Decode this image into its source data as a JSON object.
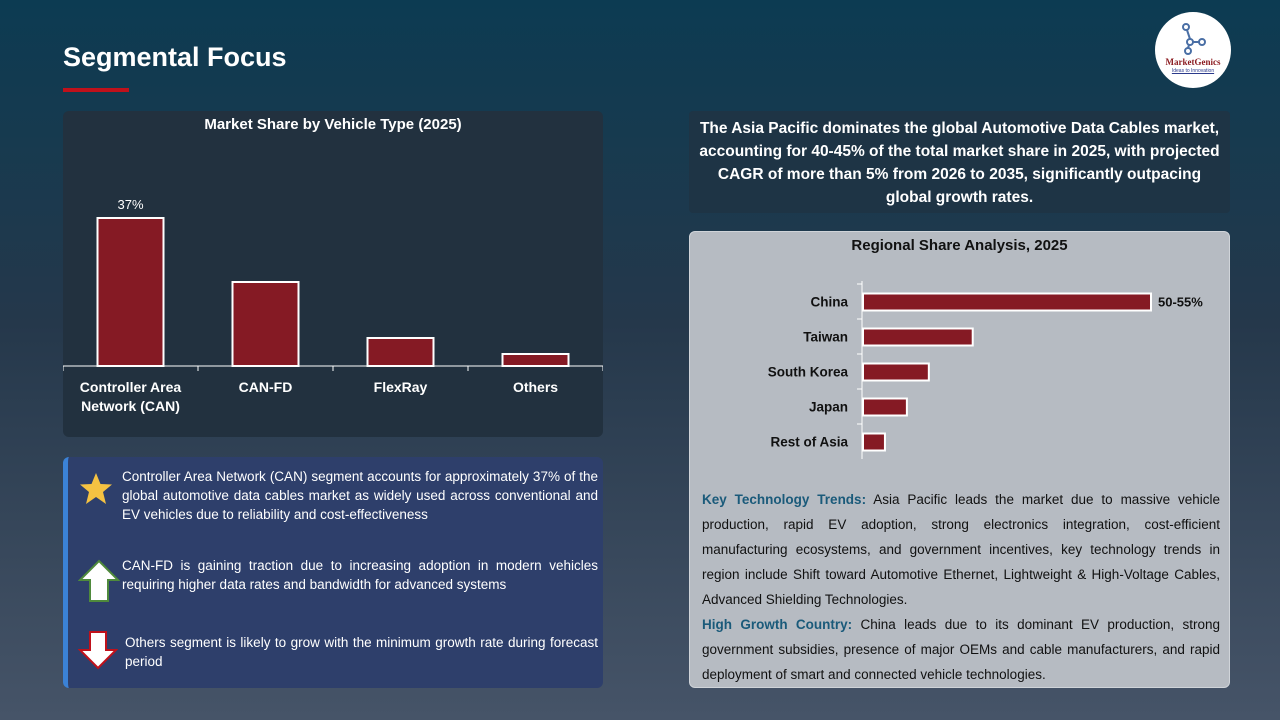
{
  "header": {
    "title": "Segmental Focus",
    "logo": {
      "name": "MarketGenics",
      "tagline": "Ideas to Innovation"
    }
  },
  "colors": {
    "bar": "#851a24",
    "accent": "#c0111b",
    "panel_border": "#3b82d6"
  },
  "chart_data": [
    {
      "type": "bar",
      "title": "Market Share by Vehicle Type (2025)",
      "categories": [
        "Controller Area Network (CAN)",
        "CAN-FD",
        "FlexRay",
        "Others"
      ],
      "category_lines": [
        [
          "Controller Area",
          "Network (CAN)"
        ],
        [
          "CAN-FD"
        ],
        [
          "FlexRay"
        ],
        [
          "Others"
        ]
      ],
      "values": [
        37,
        21,
        7,
        3
      ],
      "data_labels": [
        "37%",
        "",
        "",
        ""
      ],
      "unit": "%",
      "ylim": [
        0,
        45
      ],
      "grid": false
    },
    {
      "type": "bar",
      "orientation": "horizontal",
      "title": "Regional Share Analysis, 2025",
      "categories": [
        "China",
        "Taiwan",
        "South Korea",
        "Japan",
        "Rest of Asia"
      ],
      "values": [
        52.5,
        20,
        12,
        8,
        4
      ],
      "data_labels": [
        "50-55%",
        "",
        "",
        "",
        ""
      ],
      "unit": "%",
      "xlim": [
        0,
        60
      ],
      "grid": false
    }
  ],
  "bullets": [
    {
      "icon": "star-icon",
      "text": "Controller Area Network (CAN) segment accounts for approximately 37% of the global automotive data cables  market as widely used across conventional and EV vehicles due to reliability and cost-effectiveness"
    },
    {
      "icon": "arrow-up-icon",
      "text": "CAN-FD is gaining traction due to increasing adoption in modern vehicles requiring higher data rates and bandwidth for advanced systems"
    },
    {
      "icon": "arrow-down-icon",
      "text": "Others segment is likely to grow with the minimum growth rate during forecast period"
    }
  ],
  "highlight": "The Asia Pacific dominates the global Automotive Data Cables market, accounting for 40-45% of the total market share in 2025, with projected CAGR of more than 5% from 2026 to 2035, significantly outpacing global growth rates.",
  "insights": [
    {
      "label": "Key Technology Trends:",
      "text": " Asia Pacific leads the market due to massive vehicle production, rapid EV adoption, strong electronics integration, cost-efficient manufacturing ecosystems, and government incentives, key technology trends in region include Shift toward Automotive Ethernet, Lightweight & High-Voltage Cables, Advanced Shielding Technologies."
    },
    {
      "label": "High Growth Country:",
      "text": " China leads due to its dominant EV production, strong government subsidies, presence of major OEMs and cable manufacturers, and rapid deployment of smart and connected vehicle technologies."
    }
  ]
}
